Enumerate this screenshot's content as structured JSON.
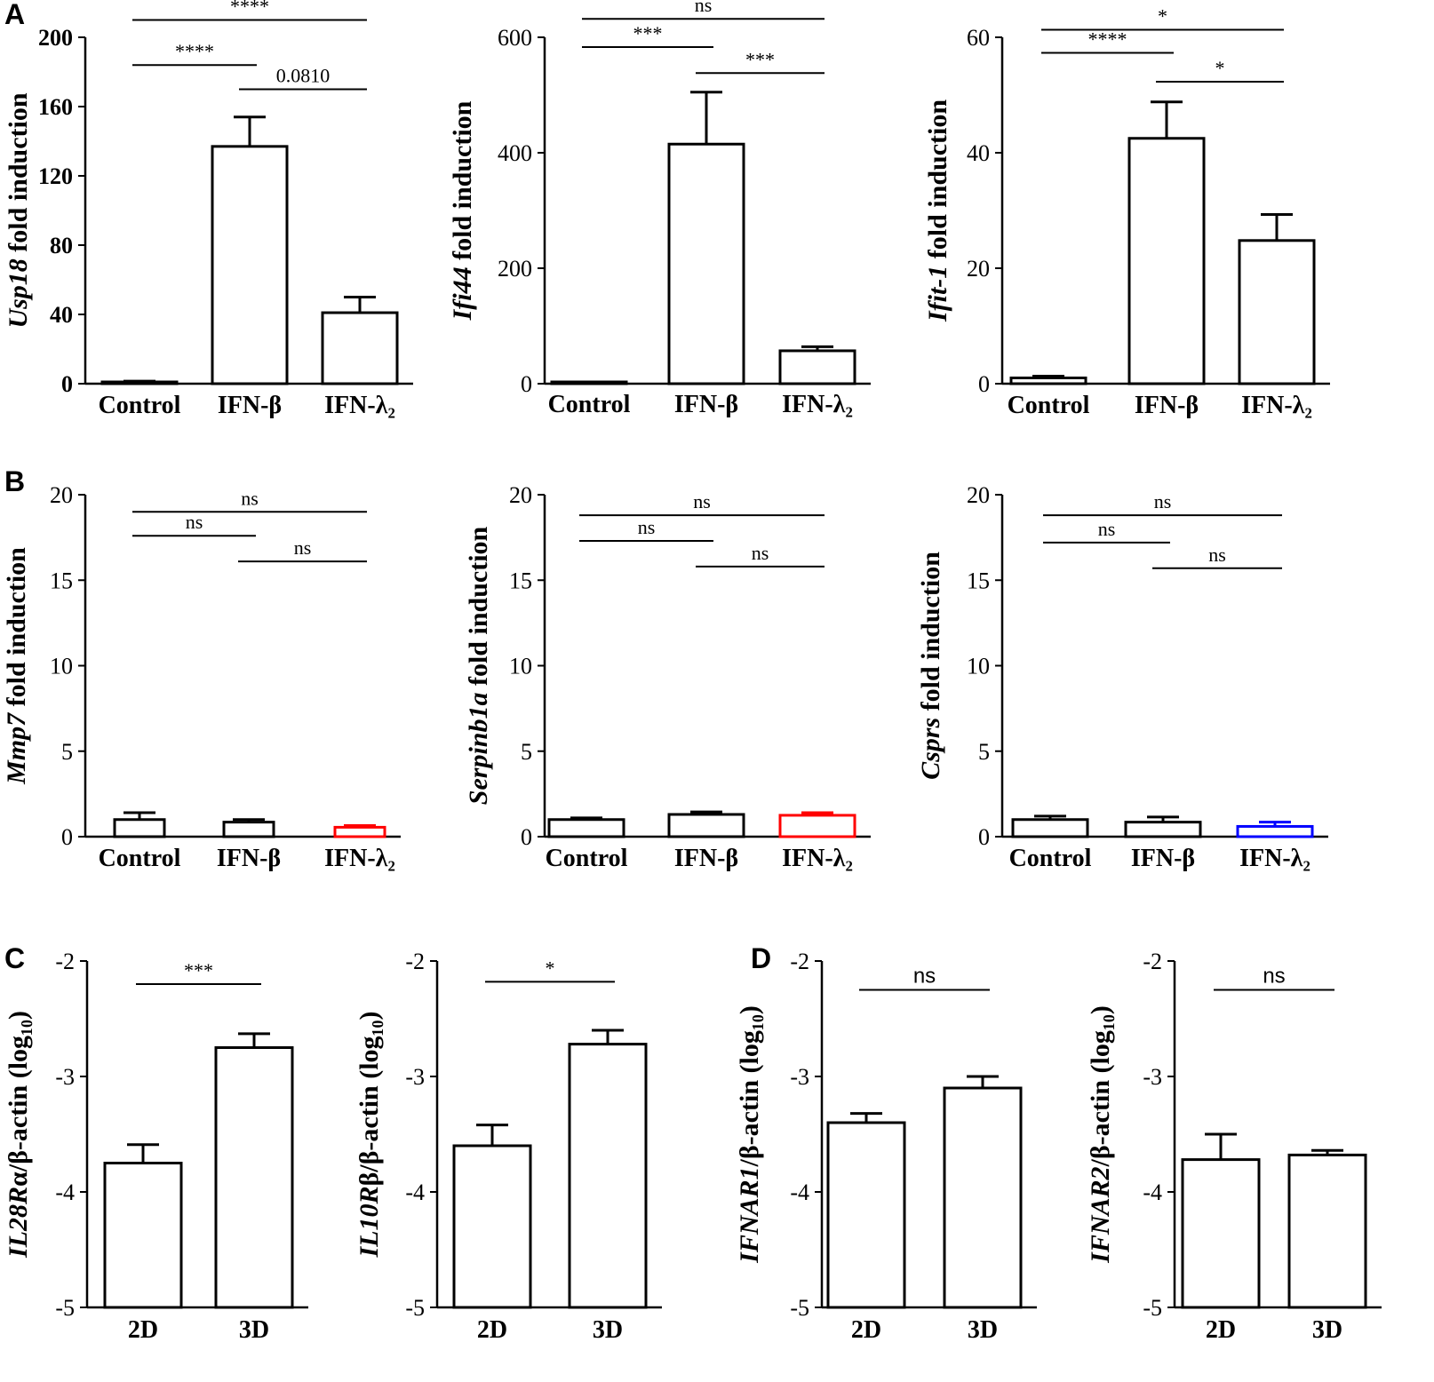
{
  "panel_letters": {
    "a": "A",
    "b": "B",
    "c": "C",
    "d": "D"
  },
  "chart_data": [
    {
      "id": "A1",
      "type": "bar",
      "categories": [
        "Control",
        "IFN-β",
        "IFN-λ₂"
      ],
      "values": [
        1,
        137,
        41
      ],
      "errors": [
        0.5,
        17,
        9
      ],
      "bar_colors": [
        "#000000",
        "#000000",
        "#000000"
      ],
      "ylim": [
        0,
        200
      ],
      "yticks": [
        0,
        40,
        80,
        120,
        160,
        200
      ],
      "ylabel_gene": "Usp18",
      "ylabel_rest": " fold induction",
      "comparisons": [
        {
          "from": 0,
          "to": 2,
          "y": 210,
          "label": "****"
        },
        {
          "from": 0,
          "to": 1,
          "y": 184,
          "label": "****"
        },
        {
          "from": 1,
          "to": 2,
          "y": 170,
          "label": "0.0810"
        }
      ]
    },
    {
      "id": "A2",
      "type": "bar",
      "categories": [
        "Control",
        "IFN-β",
        "IFN-λ₂"
      ],
      "values": [
        2,
        415,
        57
      ],
      "errors": [
        1,
        90,
        7
      ],
      "bar_colors": [
        "#000000",
        "#000000",
        "#000000"
      ],
      "ylim": [
        0,
        600
      ],
      "yticks": [
        0,
        200,
        400,
        600
      ],
      "ylabel_gene": "Ifi44",
      "ylabel_rest": " fold induction",
      "comparisons": [
        {
          "from": 0,
          "to": 2,
          "y": 632,
          "label": "ns"
        },
        {
          "from": 0,
          "to": 1,
          "y": 583,
          "label": "***"
        },
        {
          "from": 1,
          "to": 2,
          "y": 538,
          "label": "***"
        }
      ]
    },
    {
      "id": "A3",
      "type": "bar",
      "categories": [
        "Control",
        "IFN-β",
        "IFN-λ₂"
      ],
      "values": [
        1,
        42.5,
        24.8
      ],
      "errors": [
        0.3,
        6.3,
        4.5
      ],
      "bar_colors": [
        "#000000",
        "#000000",
        "#000000"
      ],
      "ylim": [
        0,
        60
      ],
      "yticks": [
        0,
        20,
        40,
        60
      ],
      "ylabel_gene": "Ifit-1",
      "ylabel_rest": " fold induction",
      "comparisons": [
        {
          "from": 0,
          "to": 2,
          "y": 61.3,
          "label": "*"
        },
        {
          "from": 0,
          "to": 1,
          "y": 57.3,
          "label": "****"
        },
        {
          "from": 1,
          "to": 2,
          "y": 52.3,
          "label": "*"
        }
      ]
    },
    {
      "id": "B1",
      "type": "bar",
      "categories": [
        "Control",
        "IFN-β",
        "IFN-λ₂"
      ],
      "values": [
        1,
        0.85,
        0.55
      ],
      "errors": [
        0.4,
        0.15,
        0.1
      ],
      "bar_colors": [
        "#000000",
        "#000000",
        "#ff0000"
      ],
      "ylim": [
        0,
        20
      ],
      "yticks": [
        0,
        5,
        10,
        15,
        20
      ],
      "ylabel_gene": "Mmp7",
      "ylabel_rest": " fold induction",
      "comparisons": [
        {
          "from": 0,
          "to": 2,
          "y": 19.0,
          "label": "ns"
        },
        {
          "from": 0,
          "to": 1,
          "y": 17.6,
          "label": "ns"
        },
        {
          "from": 1,
          "to": 2,
          "y": 16.1,
          "label": "ns"
        }
      ]
    },
    {
      "id": "B2",
      "type": "bar",
      "categories": [
        "Control",
        "IFN-β",
        "IFN-λ₂"
      ],
      "values": [
        1,
        1.3,
        1.25
      ],
      "errors": [
        0.1,
        0.15,
        0.15
      ],
      "bar_colors": [
        "#000000",
        "#000000",
        "#ff0000"
      ],
      "ylim": [
        0,
        20
      ],
      "yticks": [
        0,
        5,
        10,
        15,
        20
      ],
      "ylabel_gene": "Serpinb1a",
      "ylabel_rest": " fold induction",
      "comparisons": [
        {
          "from": 0,
          "to": 2,
          "y": 18.8,
          "label": "ns"
        },
        {
          "from": 0,
          "to": 1,
          "y": 17.3,
          "label": "ns"
        },
        {
          "from": 1,
          "to": 2,
          "y": 15.8,
          "label": "ns"
        }
      ]
    },
    {
      "id": "B3",
      "type": "bar",
      "categories": [
        "Control",
        "IFN-β",
        "IFN-λ₂"
      ],
      "values": [
        1,
        0.85,
        0.6
      ],
      "errors": [
        0.2,
        0.3,
        0.25
      ],
      "bar_colors": [
        "#000000",
        "#000000",
        "#0000ff"
      ],
      "ylim": [
        0,
        20
      ],
      "yticks": [
        0,
        5,
        10,
        15,
        20
      ],
      "ylabel_gene": "Csprs",
      "ylabel_rest": " fold induction",
      "comparisons": [
        {
          "from": 0,
          "to": 2,
          "y": 18.8,
          "label": "ns"
        },
        {
          "from": 0,
          "to": 1,
          "y": 17.2,
          "label": "ns"
        },
        {
          "from": 1,
          "to": 2,
          "y": 15.7,
          "label": "ns"
        }
      ]
    },
    {
      "id": "C1",
      "type": "bar",
      "categories": [
        "2D",
        "3D"
      ],
      "values": [
        -3.75,
        -2.75
      ],
      "errors": [
        0.16,
        0.12
      ],
      "bar_colors": [
        "#000000",
        "#000000"
      ],
      "ylim": [
        -5,
        -2
      ],
      "yticks": [
        -5,
        -4,
        -3,
        -2
      ],
      "ylabel_gene": "IL28R",
      "ylabel_greek": "α",
      "ylabel_rest": "/β-actin (log₁₀)",
      "comparisons": [
        {
          "from": 0,
          "to": 1,
          "y": -2.2,
          "label": "***"
        }
      ]
    },
    {
      "id": "C2",
      "type": "bar",
      "categories": [
        "2D",
        "3D"
      ],
      "values": [
        -3.6,
        -2.72
      ],
      "errors": [
        0.18,
        0.12
      ],
      "bar_colors": [
        "#000000",
        "#000000"
      ],
      "ylim": [
        -5,
        -2
      ],
      "yticks": [
        -5,
        -4,
        -3,
        -2
      ],
      "ylabel_gene": "IL10R",
      "ylabel_greek": "β",
      "ylabel_rest": "/β-actin (log₁₀)",
      "comparisons": [
        {
          "from": 0,
          "to": 1,
          "y": -2.18,
          "label": "*"
        }
      ]
    },
    {
      "id": "D1",
      "type": "bar",
      "categories": [
        "2D",
        "3D"
      ],
      "values": [
        -3.4,
        -3.1
      ],
      "errors": [
        0.08,
        0.1
      ],
      "bar_colors": [
        "#000000",
        "#000000"
      ],
      "ylim": [
        -5,
        -2
      ],
      "yticks": [
        -5,
        -4,
        -3,
        -2
      ],
      "ylabel_gene": "IFNAR1",
      "ylabel_greek": "",
      "ylabel_rest": "/β-actin (log₁₀)",
      "comparisons": [
        {
          "from": 0,
          "to": 1,
          "y": -2.25,
          "label": "ns"
        }
      ]
    },
    {
      "id": "D2",
      "type": "bar",
      "categories": [
        "2D",
        "3D"
      ],
      "values": [
        -3.72,
        -3.68
      ],
      "errors": [
        0.22,
        0.04
      ],
      "bar_colors": [
        "#000000",
        "#000000"
      ],
      "ylim": [
        -5,
        -2
      ],
      "yticks": [
        -5,
        -4,
        -3,
        -2
      ],
      "ylabel_gene": "IFNAR2",
      "ylabel_greek": "",
      "ylabel_rest": "/β-actin (log₁₀)",
      "comparisons": [
        {
          "from": 0,
          "to": 1,
          "y": -2.25,
          "label": "ns"
        }
      ]
    }
  ]
}
